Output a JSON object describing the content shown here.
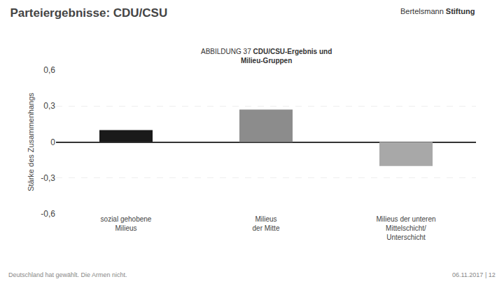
{
  "chart_data": {
    "type": "bar",
    "title": "Parteiergebnisse: CDU/CSU",
    "annotations": [
      "Bertelsmann",
      "Stiftung",
      "ABBILDUNG 37",
      "CDU/CSU-Ergebnis und",
      "Milieu-Gruppen",
      "Deutschland hat gewählt. Die Armen nicht.",
      "06.11.2017 | 12"
    ],
    "categories": [
      "sozial gehobene\nMilieus",
      "Milieus\nder Mitte",
      "Milieus der unteren\nMittelschicht/\nUnterschicht"
    ],
    "values": [
      0.1,
      0.27,
      -0.2
    ],
    "colors": [
      "#1a1a1a",
      "#8c8c8c",
      "#a8a8a8"
    ],
    "ylabel": "Stärke des Zusammenhangs",
    "ylim": [
      -0.6,
      0.6
    ],
    "yticks": [
      {
        "value": -0.6,
        "label": "-0,6"
      },
      {
        "value": -0.3,
        "label": "-0,3"
      },
      0,
      {
        "value": 0.3,
        "label": "0,3"
      },
      {
        "value": 0.6,
        "label": "0,6"
      }
    ],
    "grid": true
  }
}
